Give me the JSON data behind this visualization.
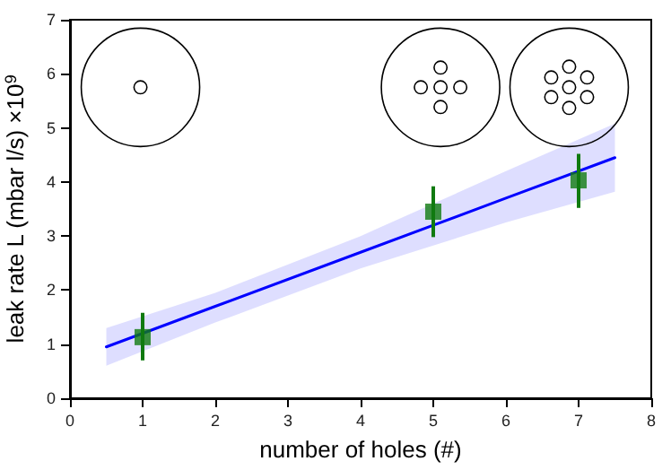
{
  "chart_data": {
    "type": "scatter",
    "xlabel": "number of holes (#)",
    "ylabel": "leak rate L (mbar l/s) ×10$^{9}$",
    "xlim": [
      0,
      8
    ],
    "xticks": [
      0,
      1,
      2,
      3,
      4,
      5,
      6,
      7,
      8
    ],
    "ylim": [
      0,
      7
    ],
    "yticks": [
      0,
      1,
      2,
      3,
      4,
      5,
      6,
      7
    ],
    "grid": false,
    "series": [
      {
        "type": "line",
        "color": "#0000ff",
        "x": [
          0.5,
          2,
          4,
          6,
          7.5
        ],
        "values": [
          0.95,
          1.7,
          2.7,
          3.7,
          4.45
        ],
        "lower": [
          0.6,
          1.4,
          2.4,
          3.25,
          3.82
        ],
        "upper": [
          1.3,
          1.95,
          3.0,
          4.2,
          5.08
        ],
        "marker": "none",
        "line_style": "solid"
      },
      {
        "color": "#107a10",
        "x": [
          1,
          5,
          7
        ],
        "values": [
          1.13,
          3.45,
          4.03
        ],
        "errors": [
          [
            0.7,
            1.58
          ],
          [
            2.98,
            3.92
          ],
          [
            3.52,
            4.52
          ]
        ],
        "marker": "square"
      }
    ]
  }
}
